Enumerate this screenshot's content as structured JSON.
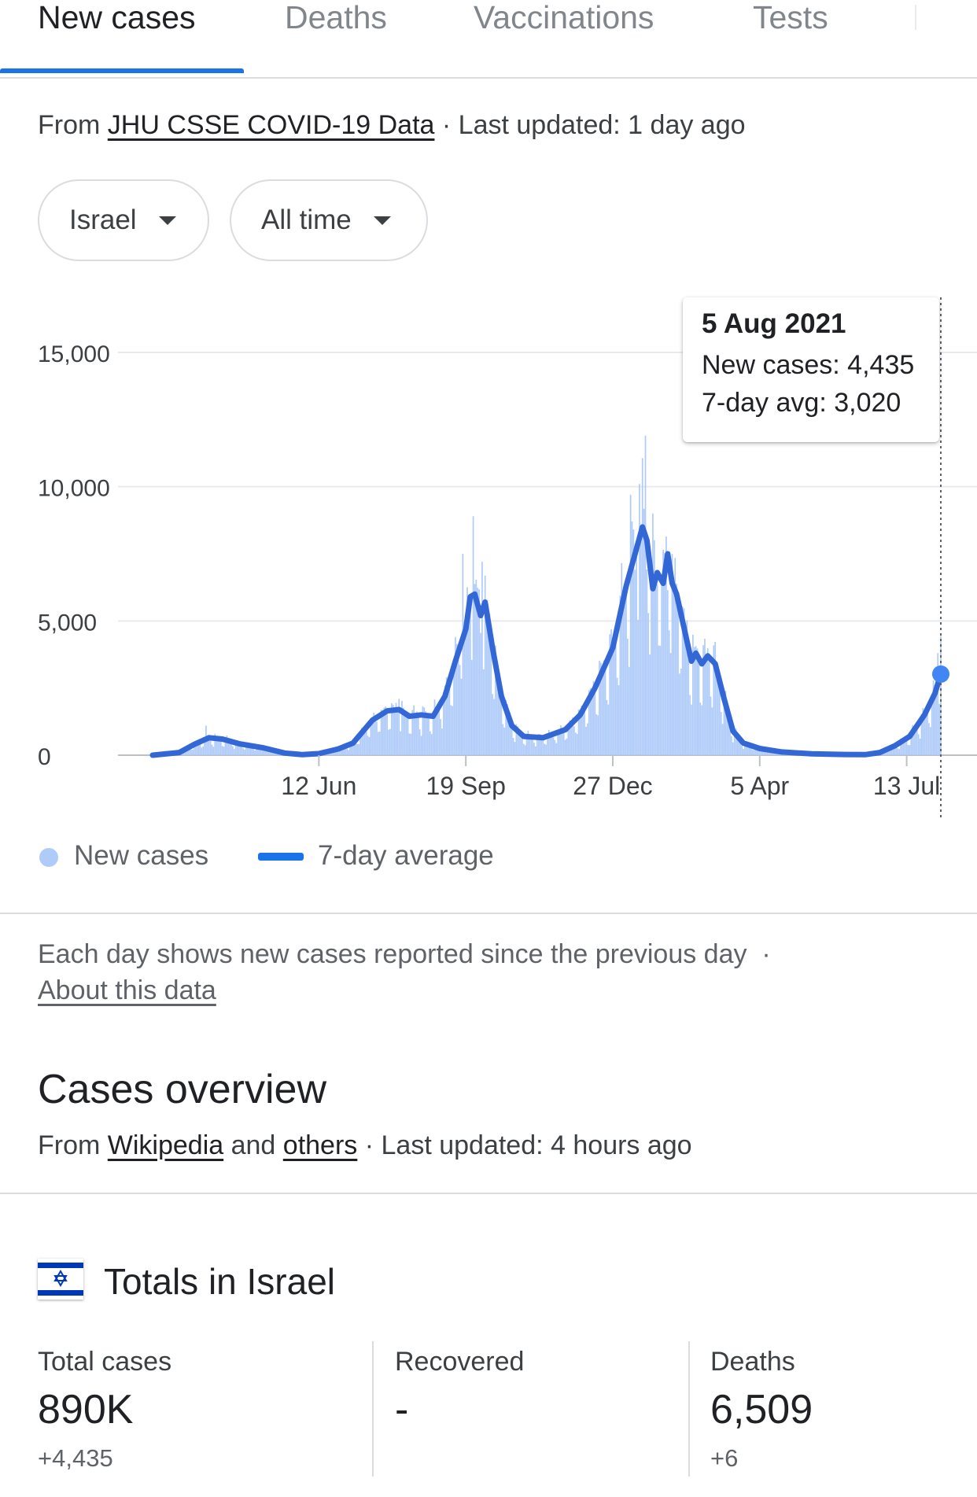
{
  "tabs": [
    {
      "label": "New cases",
      "active": true
    },
    {
      "label": "Deaths",
      "active": false
    },
    {
      "label": "Vaccinations",
      "active": false
    },
    {
      "label": "Tests",
      "active": false
    }
  ],
  "chart_source": {
    "prefix": "From ",
    "link": "JHU CSSE COVID-19 Data",
    "suffix": " · Last updated: 1 day ago"
  },
  "filters": {
    "location": "Israel",
    "range": "All time"
  },
  "colors": {
    "accent": "#1a73e8",
    "bars": "#aecbfa",
    "avg_line": "#3367d6"
  },
  "tooltip": {
    "date": "5 Aug 2021",
    "new_cases": "New cases: 4,435",
    "avg": "7-day avg: 3,020"
  },
  "legend": {
    "new_cases": "New cases",
    "avg": "7-day average"
  },
  "note": {
    "text": "Each day shows new cases reported since the previous day",
    "separator": "·",
    "link": "About this data"
  },
  "overview": {
    "title": "Cases overview",
    "source_prefix": "From ",
    "source_link1": "Wikipedia",
    "source_and": " and ",
    "source_link2": "others",
    "source_suffix": " · Last updated: 4 hours ago"
  },
  "totals": {
    "title": "Totals in Israel",
    "flag_icon": "israel-flag-icon",
    "stats": [
      {
        "label": "Total cases",
        "value": "890K",
        "delta": "+4,435"
      },
      {
        "label": "Recovered",
        "value": "-",
        "delta": ""
      },
      {
        "label": "Deaths",
        "value": "6,509",
        "delta": "+6"
      }
    ]
  },
  "chart_data": {
    "type": "bar",
    "title": "",
    "xlabel": "",
    "ylabel": "",
    "ylim": [
      0,
      15000
    ],
    "yticks": [
      0,
      5000,
      10000,
      15000
    ],
    "ytick_labels": [
      "0",
      "5,000",
      "10,000",
      "15,000"
    ],
    "xtick_labels": [
      "12 Jun",
      "19 Sep",
      "27 Dec",
      "5 Apr",
      "13 Jul"
    ],
    "xtick_dates": [
      "2020-06-12",
      "2020-09-19",
      "2020-12-27",
      "2021-04-05",
      "2021-07-13"
    ],
    "grid": true,
    "legend_position": "bottom-left",
    "x_start": "2020-02-21",
    "x_end": "2021-08-05",
    "series": [
      {
        "name": "7-day average",
        "style": "line",
        "points": [
          [
            "2020-02-21",
            0
          ],
          [
            "2020-03-10",
            100
          ],
          [
            "2020-03-20",
            400
          ],
          [
            "2020-03-30",
            650
          ],
          [
            "2020-04-08",
            600
          ],
          [
            "2020-04-20",
            420
          ],
          [
            "2020-05-05",
            280
          ],
          [
            "2020-05-20",
            80
          ],
          [
            "2020-06-01",
            20
          ],
          [
            "2020-06-12",
            60
          ],
          [
            "2020-06-25",
            230
          ],
          [
            "2020-07-05",
            450
          ],
          [
            "2020-07-18",
            1300
          ],
          [
            "2020-07-28",
            1650
          ],
          [
            "2020-08-05",
            1700
          ],
          [
            "2020-08-12",
            1450
          ],
          [
            "2020-08-20",
            1500
          ],
          [
            "2020-08-28",
            1450
          ],
          [
            "2020-09-05",
            2200
          ],
          [
            "2020-09-12",
            3500
          ],
          [
            "2020-09-19",
            4700
          ],
          [
            "2020-09-22",
            5900
          ],
          [
            "2020-09-25",
            6000
          ],
          [
            "2020-09-29",
            5200
          ],
          [
            "2020-10-02",
            5700
          ],
          [
            "2020-10-07",
            4000
          ],
          [
            "2020-10-13",
            2200
          ],
          [
            "2020-10-20",
            1100
          ],
          [
            "2020-10-28",
            700
          ],
          [
            "2020-11-10",
            650
          ],
          [
            "2020-11-25",
            950
          ],
          [
            "2020-12-05",
            1500
          ],
          [
            "2020-12-15",
            2500
          ],
          [
            "2020-12-27",
            4000
          ],
          [
            "2021-01-05",
            6300
          ],
          [
            "2021-01-12",
            7700
          ],
          [
            "2021-01-16",
            8500
          ],
          [
            "2021-01-19",
            8000
          ],
          [
            "2021-01-23",
            6200
          ],
          [
            "2021-01-26",
            6800
          ],
          [
            "2021-01-30",
            6400
          ],
          [
            "2021-02-02",
            7500
          ],
          [
            "2021-02-05",
            6400
          ],
          [
            "2021-02-08",
            6000
          ],
          [
            "2021-02-14",
            4500
          ],
          [
            "2021-02-18",
            3500
          ],
          [
            "2021-02-21",
            3800
          ],
          [
            "2021-02-25",
            3400
          ],
          [
            "2021-03-01",
            3700
          ],
          [
            "2021-03-06",
            3400
          ],
          [
            "2021-03-12",
            2100
          ],
          [
            "2021-03-18",
            900
          ],
          [
            "2021-03-25",
            450
          ],
          [
            "2021-04-05",
            250
          ],
          [
            "2021-04-20",
            120
          ],
          [
            "2021-05-10",
            50
          ],
          [
            "2021-06-01",
            25
          ],
          [
            "2021-06-15",
            20
          ],
          [
            "2021-06-25",
            100
          ],
          [
            "2021-07-05",
            350
          ],
          [
            "2021-07-15",
            700
          ],
          [
            "2021-07-25",
            1500
          ],
          [
            "2021-08-01",
            2300
          ],
          [
            "2021-08-05",
            3020
          ]
        ]
      },
      {
        "name": "New cases",
        "style": "bar",
        "highlights": [
          [
            "2020-03-28",
            1100
          ],
          [
            "2020-08-05",
            2100
          ],
          [
            "2020-09-17",
            7500
          ],
          [
            "2020-09-24",
            8900
          ],
          [
            "2020-09-30",
            7200
          ],
          [
            "2021-01-08",
            9700
          ],
          [
            "2021-01-14",
            10100
          ],
          [
            "2021-01-18",
            11900
          ],
          [
            "2021-01-23",
            9000
          ],
          [
            "2021-08-03",
            3800
          ],
          [
            "2021-08-05",
            4435
          ]
        ]
      }
    ]
  }
}
